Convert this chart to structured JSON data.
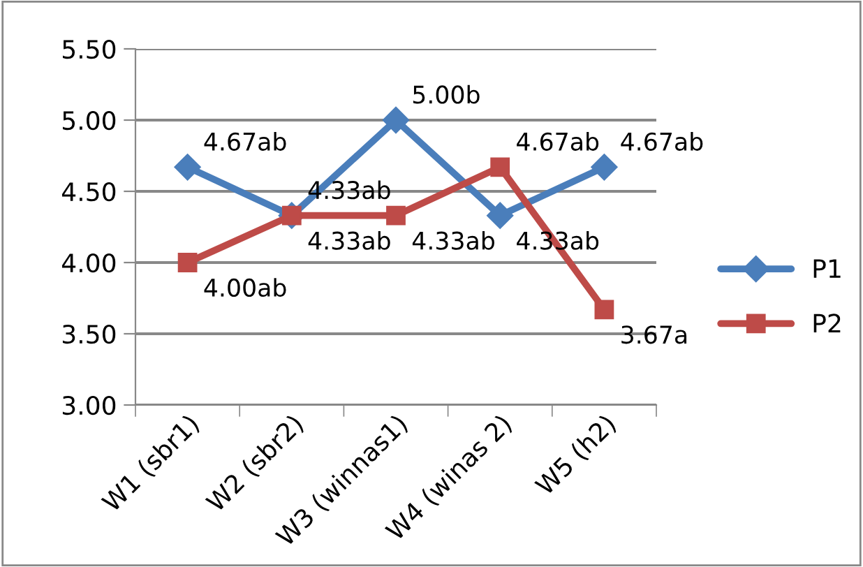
{
  "chart_data": {
    "type": "line",
    "categories": [
      "W1 (sbr1)",
      "W2 (sbr2)",
      "W3 (winnas1)",
      "W4 (winas 2)",
      "W5 (h2)"
    ],
    "series": [
      {
        "name": "P1",
        "color": "#4a7ebb",
        "marker": "diamond",
        "values": [
          4.67,
          4.33,
          5.0,
          4.33,
          4.67
        ],
        "value_labels": [
          "4.67ab",
          "4.33ab",
          "5.00b",
          "4.33ab",
          "4.67ab"
        ]
      },
      {
        "name": "P2",
        "color": "#be4b48",
        "marker": "square",
        "values": [
          4.0,
          4.33,
          4.33,
          4.67,
          3.67
        ],
        "value_labels": [
          "4.00ab",
          "4.33ab",
          "4.33ab",
          "4.67ab",
          "3.67a"
        ]
      }
    ],
    "ylim": [
      3.0,
      5.5
    ],
    "yticks": [
      {
        "value": 3.0,
        "label": "3.00"
      },
      {
        "value": 3.5,
        "label": "3.50"
      },
      {
        "value": 4.0,
        "label": "4.00"
      },
      {
        "value": 4.5,
        "label": "4.50"
      },
      {
        "value": 5.0,
        "label": "5.00"
      },
      {
        "value": 5.5,
        "label": "5.50"
      }
    ],
    "grid": "y",
    "legend": "right"
  }
}
